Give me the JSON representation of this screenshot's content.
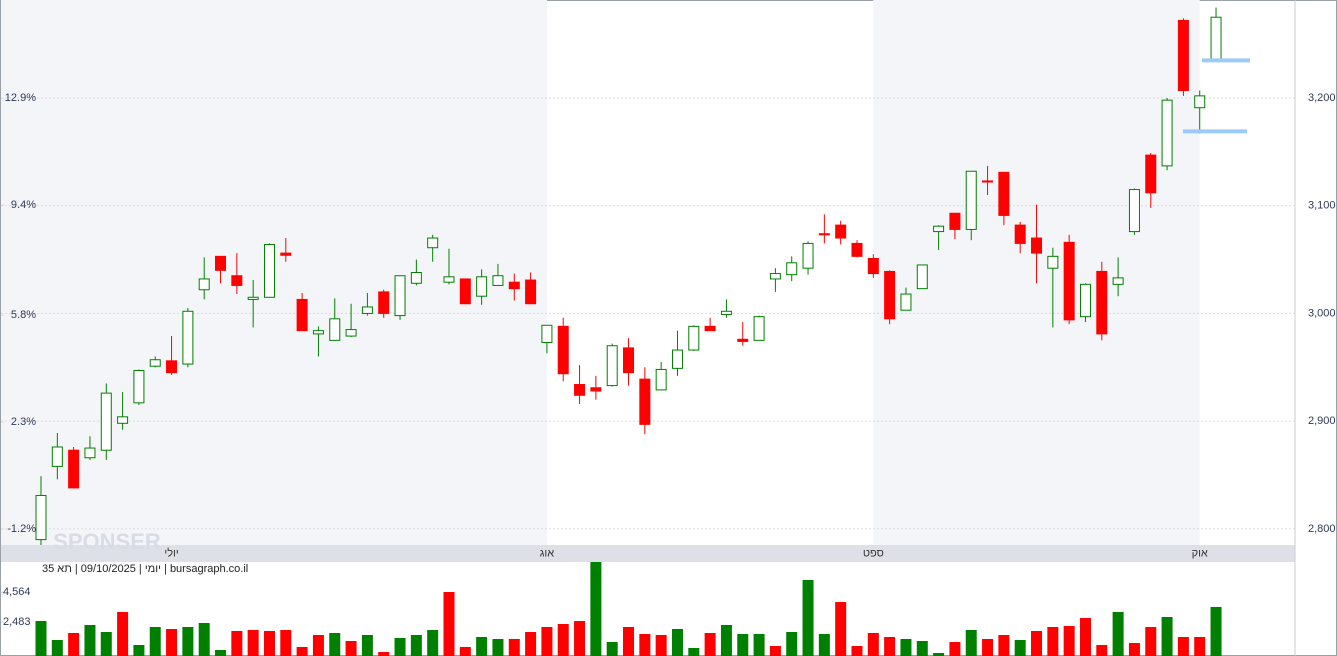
{
  "chart_data": {
    "type": "candlestick",
    "categories": [
      null,
      null,
      null,
      null,
      null,
      null,
      null,
      null,
      "יולי",
      null,
      null,
      null,
      null,
      null,
      null,
      null,
      null,
      null,
      null,
      null,
      null,
      null,
      null,
      null,
      null,
      null,
      null,
      null,
      null,
      null,
      null,
      "אוג",
      null,
      null,
      null,
      null,
      null,
      null,
      null,
      null,
      null,
      null,
      null,
      null,
      null,
      null,
      null,
      null,
      null,
      null,
      null,
      "ספט",
      null,
      null,
      null,
      null,
      null,
      null,
      null,
      null,
      null,
      null,
      null,
      null,
      null,
      null,
      null,
      null,
      null,
      null,
      null,
      "אוק",
      null
    ],
    "open": [
      2790,
      2858,
      2873,
      2866,
      2873,
      2898,
      2917,
      2951,
      2956,
      2953,
      3022,
      3053,
      3035,
      3013,
      3015,
      3056,
      3013,
      2981,
      2975,
      2979,
      3000,
      3020,
      2998,
      3028,
      3061,
      3029,
      3032,
      3016,
      3026,
      3029,
      3031,
      2973,
      2988,
      2934,
      2931,
      2933,
      2968,
      2939,
      2929,
      2949,
      2966,
      2988,
      2999,
      2976,
      2975,
      3032,
      3036,
      3042,
      3074,
      3082,
      3065,
      3051,
      3039,
      3003,
      3023,
      3076,
      3093,
      3078,
      3123,
      3131,
      3082,
      3070,
      3042,
      3066,
      2997,
      3039,
      3027,
      3076,
      3147,
      3137,
      3272,
      3191,
      3235
    ],
    "high": [
      2849,
      2889,
      2876,
      2886,
      2935,
      2927,
      2948,
      2960,
      2979,
      3005,
      3052,
      3053,
      3056,
      3031,
      3065,
      3070,
      3019,
      2988,
      3014,
      3009,
      3019,
      3022,
      3035,
      3050,
      3073,
      3060,
      3032,
      3041,
      3046,
      3037,
      3038,
      2989,
      2996,
      2952,
      2942,
      2972,
      2977,
      2950,
      2955,
      2984,
      2989,
      2996,
      3013,
      2992,
      2998,
      3042,
      3053,
      3067,
      3092,
      3086,
      3068,
      3055,
      3040,
      3024,
      3045,
      3082,
      3093,
      3132,
      3137,
      3131,
      3085,
      3101,
      3061,
      3073,
      3028,
      3048,
      3052,
      3116,
      3149,
      3200,
      3274,
      3207,
      3284
    ],
    "low": [
      2785,
      2846,
      2838,
      2864,
      2864,
      2892,
      2915,
      2950,
      2943,
      2950,
      3013,
      3028,
      3018,
      2987,
      3015,
      3048,
      2984,
      2960,
      2975,
      2978,
      2998,
      2996,
      2994,
      3026,
      3048,
      3027,
      3009,
      3008,
      3026,
      3012,
      3009,
      2963,
      2937,
      2916,
      2920,
      2932,
      2933,
      2888,
      2929,
      2942,
      2965,
      2984,
      2996,
      2970,
      2975,
      3020,
      3030,
      3036,
      3065,
      3064,
      3052,
      3033,
      2990,
      3003,
      3023,
      3059,
      3069,
      3068,
      3110,
      3082,
      3056,
      3028,
      2987,
      2990,
      2992,
      2975,
      3016,
      3073,
      3098,
      3133,
      3202,
      3167,
      3235
    ],
    "close": [
      2831,
      2876,
      2838,
      2875,
      2926,
      2904,
      2947,
      2957,
      2945,
      3002,
      3032,
      3040,
      3026,
      3015,
      3064,
      3054,
      2984,
      2984,
      2995,
      2985,
      3006,
      3000,
      3035,
      3038,
      3070,
      3034,
      3009,
      3034,
      3035,
      3023,
      3009,
      2989,
      2944,
      2924,
      2928,
      2970,
      2945,
      2897,
      2948,
      2966,
      2988,
      2984,
      3002,
      2974,
      2997,
      3037,
      3047,
      3065,
      3073,
      3070,
      3053,
      3037,
      2995,
      3018,
      3045,
      3081,
      3078,
      3132,
      3122,
      3091,
      3065,
      3056,
      3053,
      2994,
      3027,
      2981,
      3033,
      3115,
      3112,
      3198,
      3207,
      3202,
      3275
    ],
    "up_color": "#008000",
    "down_color": "#ff0000",
    "ylim": [
      2785,
      3291
    ],
    "yticks": [
      {
        "value": 2800,
        "label": "2,800"
      },
      {
        "value": 2900,
        "label": "2,900"
      },
      {
        "value": 3000,
        "label": "3,000"
      },
      {
        "value": 3100,
        "label": "3,100"
      },
      {
        "value": 3200,
        "label": "3,200"
      }
    ],
    "y2lim": [
      -1.72,
      16.11
    ],
    "y2ticks": [
      {
        "value": -1.2,
        "label": "-1.2%"
      },
      {
        "value": 2.3,
        "label": "2.3%"
      },
      {
        "value": 5.8,
        "label": "5.8%"
      },
      {
        "value": 9.4,
        "label": "9.4%"
      },
      {
        "value": 12.9,
        "label": "12.9%"
      }
    ],
    "grid": true,
    "levels": [
      3235,
      3169
    ],
    "level_color": "#9ecbf5",
    "volume": {
      "values": [
        2568,
        1249,
        1735,
        2290,
        1804,
        3192,
        902,
        2151,
        2013,
        2151,
        2429,
        555,
        1874,
        1943,
        1874,
        1943,
        763,
        1596,
        1735,
        1180,
        1596,
        416,
        1388,
        1596,
        1943,
        4580,
        763,
        1457,
        1319,
        1319,
        1804,
        2151,
        2360,
        2568,
        6662,
        1110,
        2151,
        1666,
        1596,
        2013,
        694,
        1735,
        2290,
        1666,
        1666,
        833,
        1804,
        5413,
        1666,
        3886,
        833,
        1735,
        1457,
        1319,
        1180,
        347,
        1110,
        1943,
        1319,
        1596,
        1249,
        1874,
        2151,
        2221,
        2776,
        902,
        3192,
        1041,
        2151,
        2845,
        1457,
        1457,
        3539
      ],
      "colors": [
        "#008000",
        "#008000",
        "#ff0000",
        "#008000",
        "#008000",
        "#ff0000",
        "#008000",
        "#008000",
        "#ff0000",
        "#008000",
        "#008000",
        "#008000",
        "#ff0000",
        "#ff0000",
        "#ff0000",
        "#ff0000",
        "#ff0000",
        "#ff0000",
        "#008000",
        "#ff0000",
        "#008000",
        "#ff0000",
        "#008000",
        "#008000",
        "#008000",
        "#ff0000",
        "#ff0000",
        "#008000",
        "#008000",
        "#ff0000",
        "#ff0000",
        "#ff0000",
        "#ff0000",
        "#ff0000",
        "#008000",
        "#008000",
        "#ff0000",
        "#ff0000",
        "#ff0000",
        "#008000",
        "#008000",
        "#ff0000",
        "#008000",
        "#008000",
        "#008000",
        "#ff0000",
        "#008000",
        "#008000",
        "#008000",
        "#ff0000",
        "#ff0000",
        "#ff0000",
        "#ff0000",
        "#008000",
        "#008000",
        "#008000",
        "#ff0000",
        "#008000",
        "#ff0000",
        "#ff0000",
        "#008000",
        "#ff0000",
        "#ff0000",
        "#ff0000",
        "#ff0000",
        "#ff0000",
        "#008000",
        "#ff0000",
        "#ff0000",
        "#008000",
        "#ff0000",
        "#ff0000",
        "#008000"
      ],
      "ylim": [
        0,
        6662
      ],
      "yticks": [
        {
          "value": 2483,
          "label": "2,483"
        },
        {
          "value": 4564,
          "label": "4,564"
        }
      ]
    },
    "caption": "יומי | 09/10/2025 | תא 35 | bursagraph.co.il",
    "watermark": "SPONSER"
  }
}
